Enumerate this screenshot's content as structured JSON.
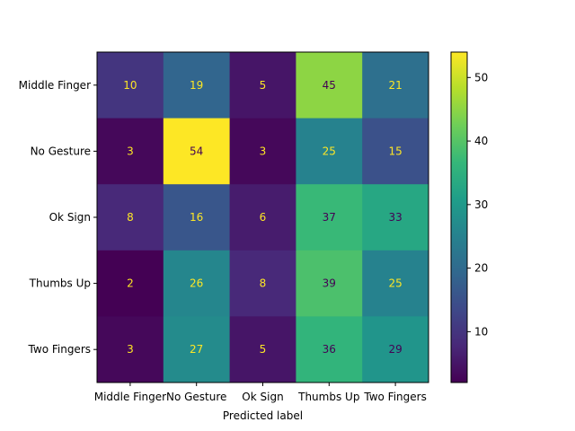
{
  "chart_data": {
    "type": "heatmap",
    "title": "",
    "xlabel": "Predicted label",
    "ylabel": "",
    "x_categories": [
      "Middle Finger",
      "No Gesture",
      "Ok Sign",
      "Thumbs Up",
      "Two Fingers"
    ],
    "y_categories": [
      "Middle Finger",
      "No Gesture",
      "Ok Sign",
      "Thumbs Up",
      "Two Fingers"
    ],
    "values": [
      [
        10,
        19,
        5,
        45,
        21
      ],
      [
        3,
        54,
        3,
        25,
        15
      ],
      [
        8,
        16,
        6,
        37,
        33
      ],
      [
        2,
        26,
        8,
        39,
        25
      ],
      [
        3,
        27,
        5,
        36,
        29
      ]
    ],
    "colormap": "viridis",
    "color_range": [
      2,
      54
    ],
    "colorbar_ticks": [
      10,
      20,
      30,
      40,
      50
    ],
    "label_colors": {
      "on_dark": "#fde725",
      "on_light": "#440154"
    }
  }
}
